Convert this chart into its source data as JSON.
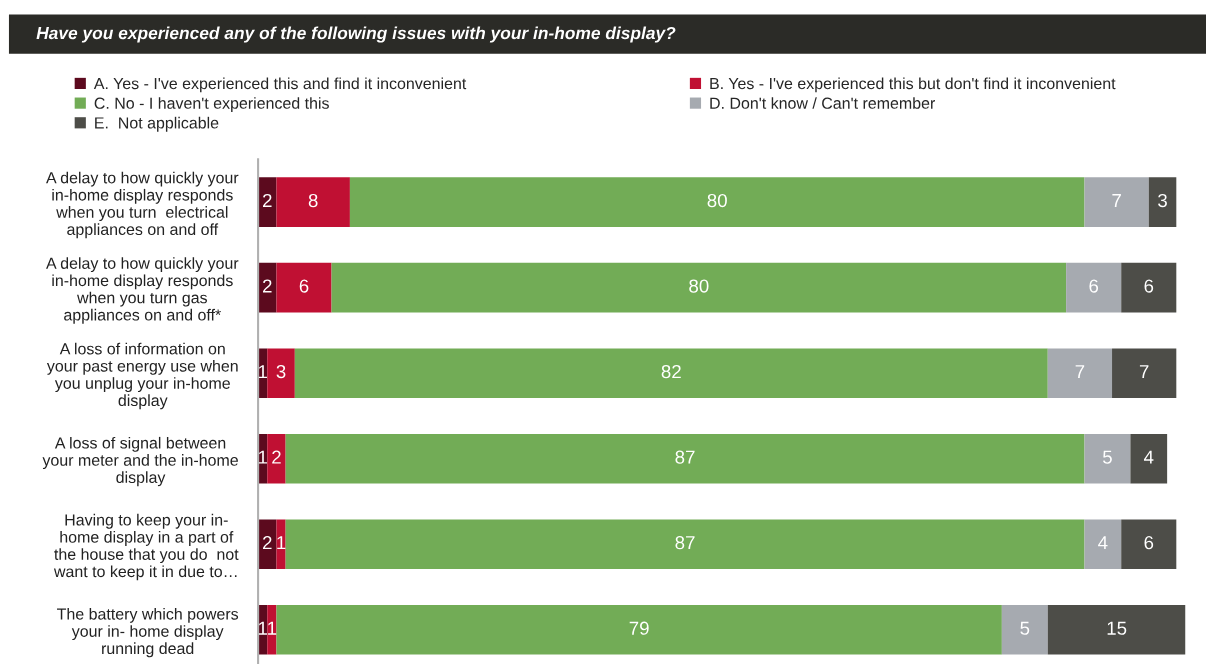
{
  "chart_data": {
    "type": "bar",
    "orientation": "horizontal",
    "stacked": true,
    "data_labels": true,
    "legend": "top",
    "title": "Have you experienced any of the following issues with your in-home display?",
    "categories": [
      "A delay to how quickly your\nin-home display responds\nwhen you turn  electrical\nappliances on and off",
      "A delay to how quickly your\nin-home display responds\nwhen you turn gas\nappliances on and off*",
      "A loss of information on\nyour past energy use when\nyou unplug your in-home\ndisplay",
      "A loss of signal between\nyour meter and the in-home\ndisplay",
      "Having to keep your in-\nhome display in a part of\nthe house that you do  not\nwant to keep it in due to…",
      "The battery which powers\nyour in- home display\nrunning dead"
    ],
    "series": [
      {
        "name": "A. Yes - I've experienced this and find it inconvenient",
        "color": "#5c0a1e",
        "values": [
          2,
          2,
          1,
          1,
          2,
          1
        ]
      },
      {
        "name": "B. Yes - I've experienced this but don't find it inconvenient",
        "color": "#c01033",
        "values": [
          8,
          6,
          3,
          2,
          1,
          1
        ]
      },
      {
        "name": "C. No - I haven't experienced this",
        "color": "#72ac56",
        "values": [
          80,
          80,
          82,
          87,
          87,
          79
        ]
      },
      {
        "name": "D. Don't know / Can't remember",
        "color": "#a6aab0",
        "values": [
          7,
          6,
          7,
          5,
          4,
          5
        ]
      },
      {
        "name": "E.  Not applicable",
        "color": "#4d4d48",
        "values": [
          3,
          6,
          7,
          4,
          6,
          15
        ]
      }
    ]
  }
}
